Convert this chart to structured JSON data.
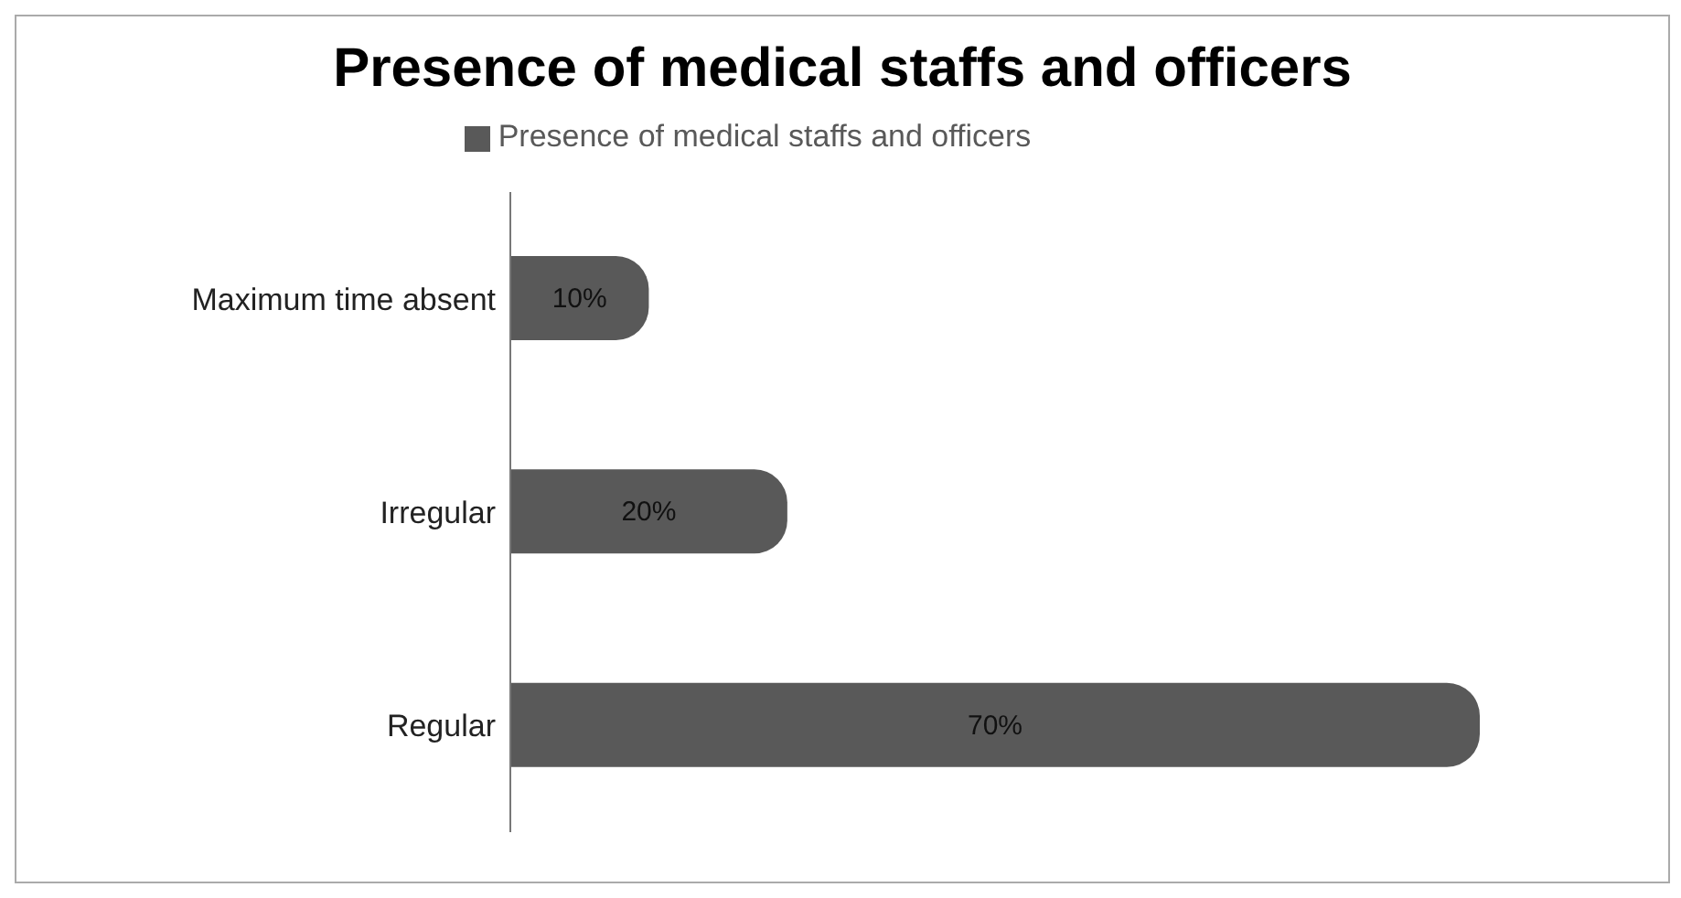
{
  "chart_data": {
    "type": "bar",
    "orientation": "horizontal",
    "title": "Presence of medical staffs and officers",
    "categories": [
      "Maximum time absent",
      "Irregular",
      "Regular"
    ],
    "series": [
      {
        "name": "Presence of medical staffs and officers",
        "color": "#595959",
        "values": [
          10,
          20,
          70
        ],
        "value_labels": [
          "10%",
          "20%",
          "70%"
        ]
      }
    ],
    "legend": "top"
  }
}
